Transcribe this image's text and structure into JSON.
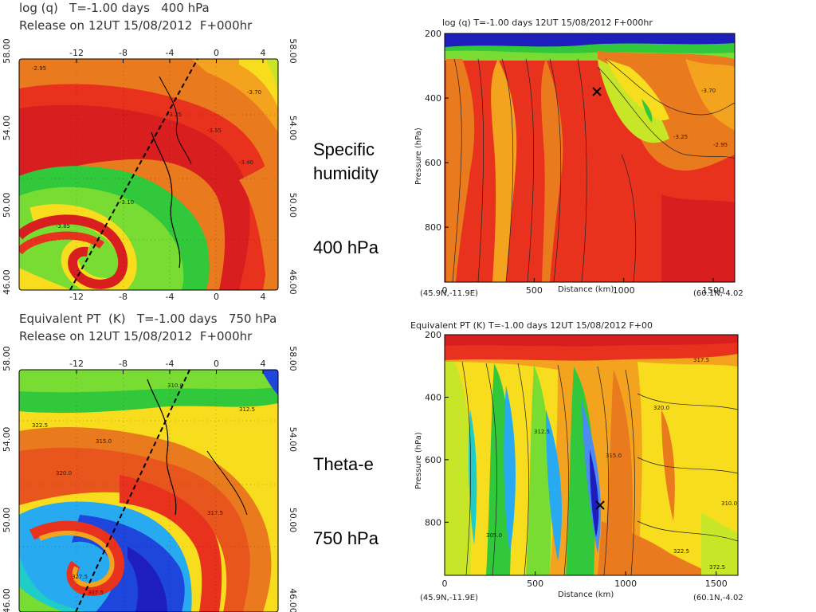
{
  "palette": {
    "dark_red": "#d81e1e",
    "red": "#e8321e",
    "orange_red": "#e8561e",
    "orange": "#ea7a1e",
    "light_orange": "#f4a31e",
    "yellow": "#f8dc1e",
    "yellow_green": "#c8e628",
    "light_green": "#78dc32",
    "green": "#32c83c",
    "teal": "#1ecdc8",
    "cyan": "#28aaf0",
    "light_blue": "#4b8cf0",
    "blue": "#1e46dc",
    "dark_blue": "#1e1ebe"
  },
  "chart_data": [
    {
      "id": "q400-map",
      "type": "heatmap",
      "title": "log (q)   T=-1.00 days   400 hPa",
      "subtitle": "Release on 12UT 15/08/2012  F+000hr",
      "x_ticks": [
        "-12",
        "-8",
        "-4",
        "0",
        "4"
      ],
      "y_ticks": [
        "46.00",
        "50.00",
        "54.00",
        "58.00"
      ],
      "contour_labels": [
        "-2.95",
        "-3.70",
        "-3.55",
        "-3.40",
        "-3.25",
        "-3.10",
        "-3.85"
      ]
    },
    {
      "id": "q-cross-section",
      "type": "heatmap",
      "title": "log (q)   T=-1.00 days   12UT 15/08/2012  F+000hr",
      "xlabel": "Distance  (km)",
      "ylabel": "Pressure  (hPa)",
      "xlim": [
        0,
        1620
      ],
      "ylim": [
        970,
        200
      ],
      "x_ticks": [
        "0",
        "500",
        "1000",
        "1500"
      ],
      "y_ticks": [
        "200",
        "400",
        "600",
        "800"
      ],
      "start_point": "(45.9N,-11.9E)",
      "end_point": "(60.1N,-4.02",
      "marker": {
        "distance_km": 850,
        "pressure_hPa": 400
      },
      "contour_labels": [
        "-3.70",
        "-3.25",
        "-2.95"
      ]
    },
    {
      "id": "thetae750-map",
      "type": "heatmap",
      "title": "Equivalent PT  (K)   T=-1.00 days   750 hPa",
      "subtitle": "Release on 12UT 15/08/2012  F+000hr",
      "x_ticks": [
        "-12",
        "-8",
        "-4",
        "0",
        "4"
      ],
      "y_ticks": [
        "46.00",
        "50.00",
        "54.00",
        "58.00"
      ],
      "contour_labels": [
        "310.0",
        "312.5",
        "315.0",
        "317.5",
        "320.0",
        "322.5",
        "327.5",
        "307.5"
      ]
    },
    {
      "id": "thetae-cross-section",
      "type": "heatmap",
      "title": "Equivalent PT  (K)   T=-1.00 days   12UT 15/08/2012  F+00",
      "xlabel": "Distance  (km)",
      "ylabel": "Pressure  (hPa)",
      "xlim": [
        0,
        1620
      ],
      "ylim": [
        970,
        200
      ],
      "x_ticks": [
        "0",
        "500",
        "1000",
        "1500"
      ],
      "y_ticks": [
        "200",
        "400",
        "600",
        "800"
      ],
      "start_point": "(45.9N,-11.9E)",
      "end_point": "(60.1N,-4.02",
      "marker": {
        "distance_km": 850,
        "pressure_hPa": 750
      },
      "contour_labels": [
        "317.5",
        "320.0",
        "312.5",
        "315.0",
        "310.0",
        "322.5",
        "305.0",
        "372.5"
      ]
    }
  ],
  "annotations": {
    "top_label_line1": "Specific",
    "top_label_line2": "humidity",
    "top_level": "400 hPa",
    "bottom_label": "Theta-e",
    "bottom_level": "750 hPa"
  }
}
